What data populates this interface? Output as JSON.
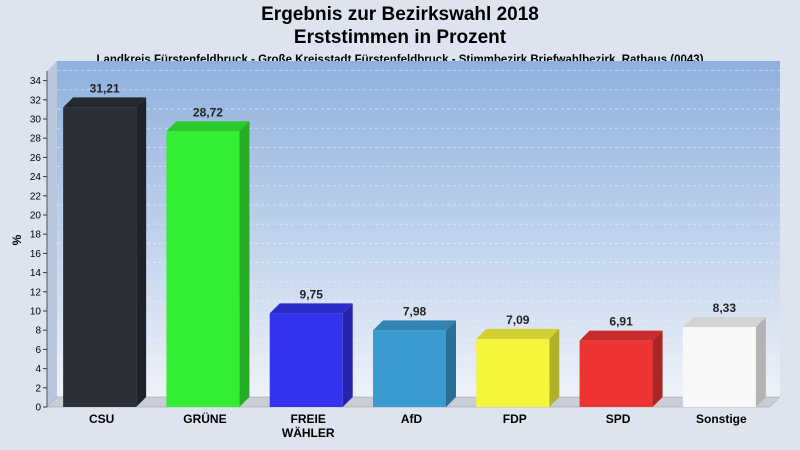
{
  "header": {
    "title": "Ergebnis zur Bezirkswahl 2018",
    "subtitle": "Erststimmen in Prozent",
    "caption": "Landkreis Fürstenfeldbruck - Große Kreisstadt Fürstenfeldbruck - Stimmbezirk Briefwahlbezirk, Rathaus (0043)"
  },
  "chart_data": {
    "type": "bar",
    "title": "Ergebnis zur Bezirkswahl 2018",
    "subtitle": "Erststimmen in Prozent",
    "xlabel": "",
    "ylabel": "%",
    "ylim": [
      0,
      35
    ],
    "yticks": [
      "0",
      "2",
      "4",
      "6",
      "8",
      "10",
      "12",
      "14",
      "16",
      "18",
      "20",
      "22",
      "24",
      "26",
      "28",
      "30",
      "32",
      "34"
    ],
    "grid": true,
    "legend": "none",
    "categories": [
      [
        "CSU"
      ],
      [
        "GRÜNE"
      ],
      [
        "FREIE",
        "WÄHLER"
      ],
      [
        "AfD"
      ],
      [
        "FDP"
      ],
      [
        "SPD"
      ],
      [
        "Sonstige"
      ]
    ],
    "values": [
      31.21,
      28.72,
      9.75,
      7.98,
      7.09,
      6.91,
      8.33
    ],
    "value_labels": [
      "31,21",
      "28,72",
      "9,75",
      "7,98",
      "7,09",
      "6,91",
      "8,33"
    ],
    "colors": [
      "#2b2f38",
      "#33ee33",
      "#3333ee",
      "#3a9bd0",
      "#f5f53a",
      "#ee3333",
      "#f8f8f8"
    ]
  }
}
